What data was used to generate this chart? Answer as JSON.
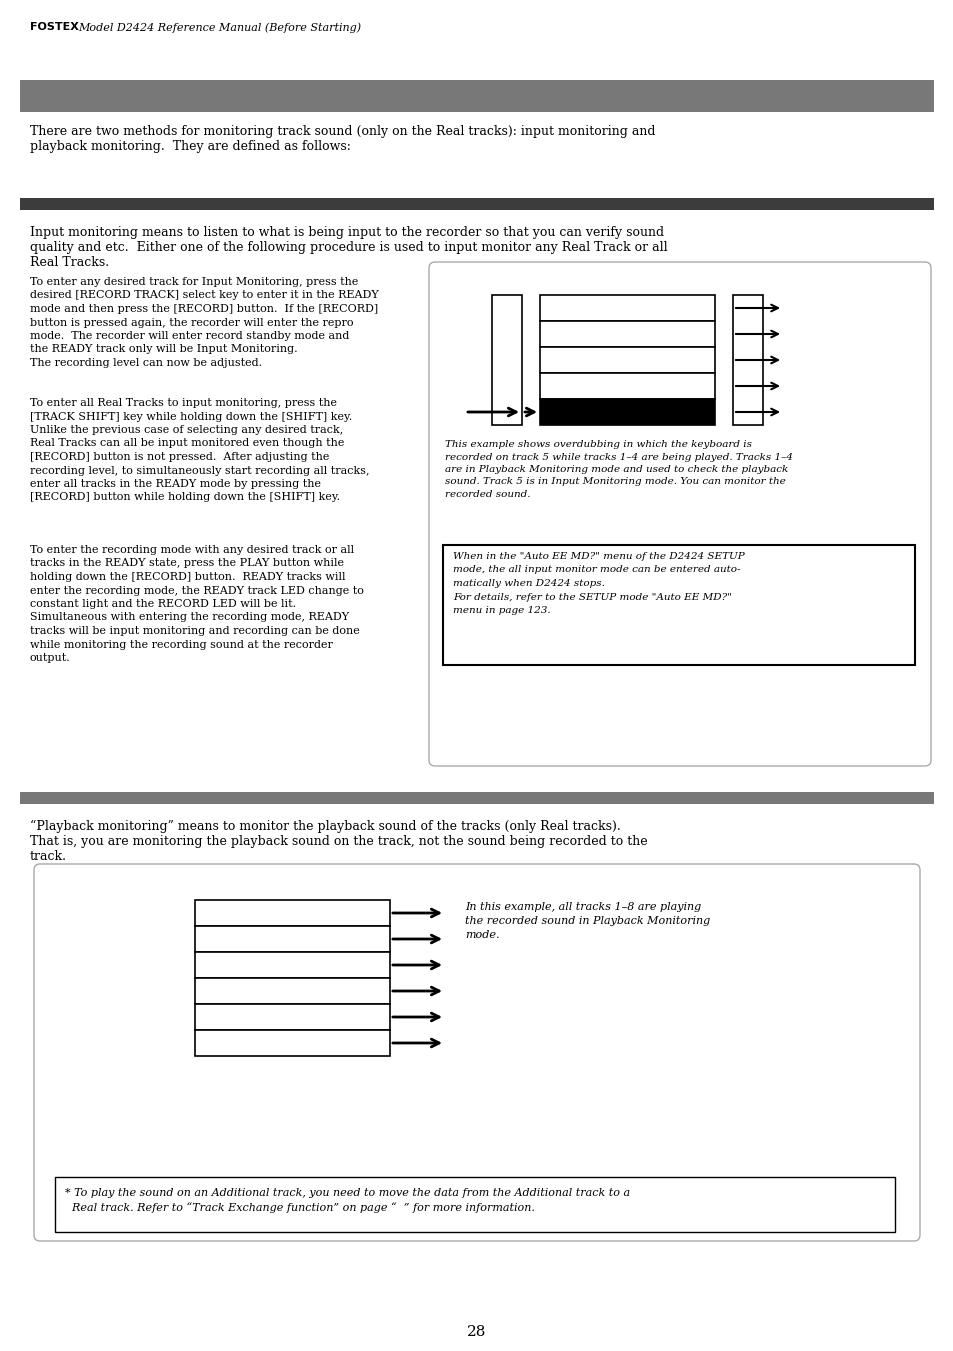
{
  "page_number": "28",
  "header_text": "Model D2424 Reference Manual (Before Starting)",
  "header_brand": "FOSTEX",
  "bg_color": "#ffffff",
  "gray_bar1_color": "#787878",
  "dark_bar_color": "#3c3c3c",
  "gray_bar3_color": "#787878",
  "intro_text": "There are two methods for monitoring track sound (only on the Real tracks): input monitoring and\nplayback monitoring.  They are defined as follows:",
  "input_intro_line1": "Input monitoring means to listen to what is being input to the recorder so that you can verify sound",
  "input_intro_line2": "quality and etc.  Either one of the following procedure is used to input monitor any Real Track or all",
  "input_intro_line3": "Real Tracks.",
  "para1_lines": [
    "To enter any desired track for Input Monitoring, press the",
    "desired [RECORD TRACK] select key to enter it in the READY",
    "mode and then press the [RECORD] button.  If the [RECORD]",
    "button is pressed again, the recorder will enter the repro",
    "mode.  The recorder will enter record standby mode and",
    "the READY track only will be Input Monitoring.",
    "The recording level can now be adjusted."
  ],
  "para2_lines": [
    "To enter all Real Tracks to input monitoring, press the",
    "[TRACK SHIFT] key while holding down the [SHIFT] key.",
    "Unlike the previous case of selecting any desired track,",
    "Real Tracks can all be input monitored even though the",
    "[RECORD] button is not pressed.  After adjusting the",
    "recording level, to simultaneously start recording all tracks,",
    "enter all tracks in the READY mode by pressing the",
    "[RECORD] button while holding down the [SHIFT] key."
  ],
  "para3_lines": [
    "To enter the recording mode with any desired track or all",
    "tracks in the READY state, press the PLAY button while",
    "holding down the [RECORD] button.  READY tracks will",
    "enter the recording mode, the READY track LED change to",
    "constant light and the RECORD LED will be lit.",
    "Simultaneous with entering the recording mode, READY",
    "tracks will be input monitoring and recording can be done",
    "while monitoring the recording sound at the recorder",
    "output."
  ],
  "caption1_lines": [
    "This example shows overdubbing in which the keyboard is",
    "recorded on track 5 while tracks 1–4 are being played. Tracks 1–4",
    "are in Playback Monitoring mode and used to check the playback",
    "sound. Track 5 is in Input Monitoring mode. You can monitor the",
    "recorded sound."
  ],
  "note_lines": [
    "When in the \"Auto EE MD?\" menu of the D2424 SETUP",
    "mode, the all input monitor mode can be entered auto-",
    "matically when D2424 stops.",
    "For details, refer to the SETUP mode \"Auto EE MD?\"",
    "menu in page 123."
  ],
  "playback_intro_line1": "“Playback monitoring” means to monitor the playback sound of the tracks (only Real tracks).",
  "playback_intro_line2": "That is, you are monitoring the playback sound on the track, not the sound being recorded to the",
  "playback_intro_line3": "track.",
  "caption2_lines": [
    "In this example, all tracks 1–8 are playing",
    "the recorded sound in Playback Monitoring",
    "mode."
  ],
  "footer_note_lines": [
    "* To play the sound on an Additional track, you need to move the data from the Additional track to a",
    "  Real track. Refer to “Track Exchange function” on page “  ” for more information."
  ]
}
